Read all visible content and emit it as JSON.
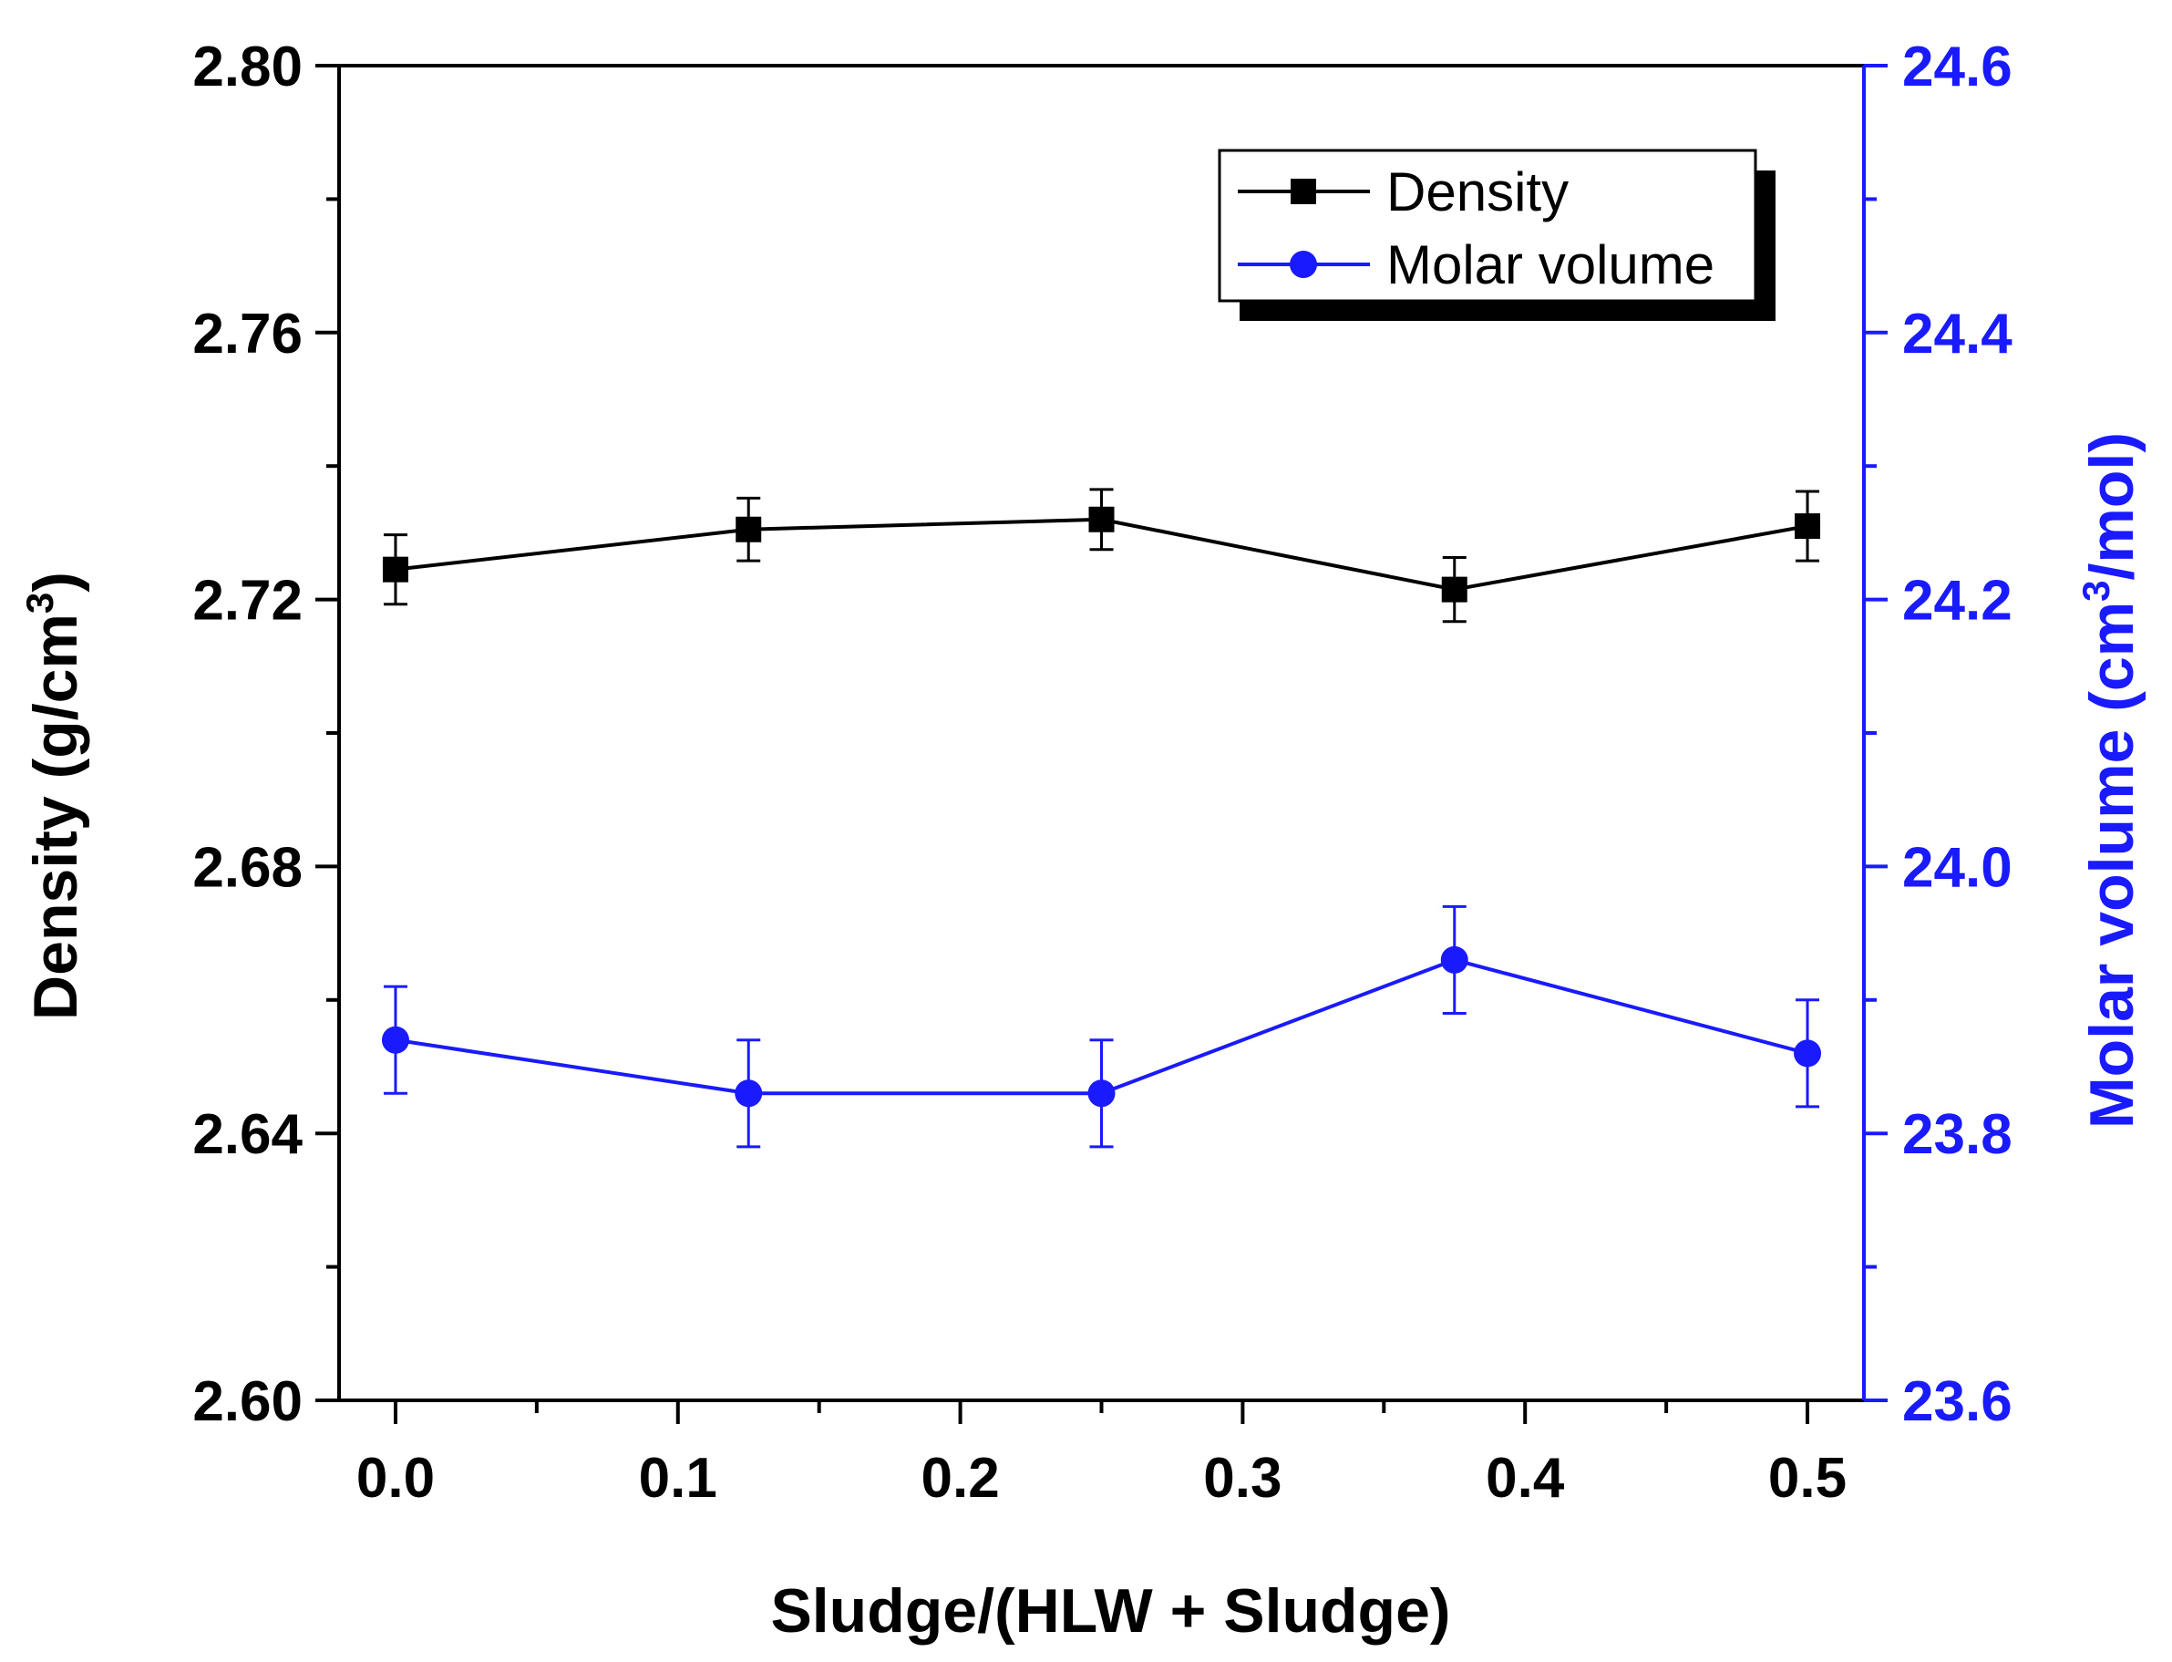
{
  "colors": {
    "density": "#000000",
    "molar_volume": "#1a1aff",
    "background": "#ffffff"
  },
  "chart_data": {
    "type": "line",
    "xlabel": "Sludge/(HLW + Sludge)",
    "x_ticks": [
      "0.0",
      "0.1",
      "0.2",
      "0.3",
      "0.4",
      "0.5"
    ],
    "xlim": [
      -0.02,
      0.52
    ],
    "x": [
      0.0,
      0.125,
      0.25,
      0.375,
      0.5
    ],
    "y_left": {
      "label_main": "Density (g/cm",
      "label_sup": "3",
      "label_tail": ")",
      "ylim": [
        2.6,
        2.8
      ],
      "ticks": [
        "2.60",
        "2.64",
        "2.68",
        "2.72",
        "2.76",
        "2.80"
      ]
    },
    "y_right": {
      "label_main": "Molar volume (cm",
      "label_sup": "3",
      "label_tail": "/mol)",
      "ylim": [
        23.6,
        24.6
      ],
      "ticks": [
        "23.6",
        "23.8",
        "24.0",
        "24.2",
        "24.4",
        "24.6"
      ]
    },
    "series": [
      {
        "name": "Density",
        "axis": "left",
        "marker": "square",
        "values": [
          2.7245,
          2.7305,
          2.732,
          2.7215,
          2.731
        ],
        "errors": [
          0.0052,
          0.0047,
          0.0045,
          0.0048,
          0.0052
        ]
      },
      {
        "name": "Molar volume",
        "axis": "right",
        "marker": "circle",
        "values": [
          23.87,
          23.83,
          23.83,
          23.93,
          23.86
        ],
        "errors": [
          0.04,
          0.04,
          0.04,
          0.04,
          0.04
        ]
      }
    ],
    "legend_position": "top-right"
  }
}
